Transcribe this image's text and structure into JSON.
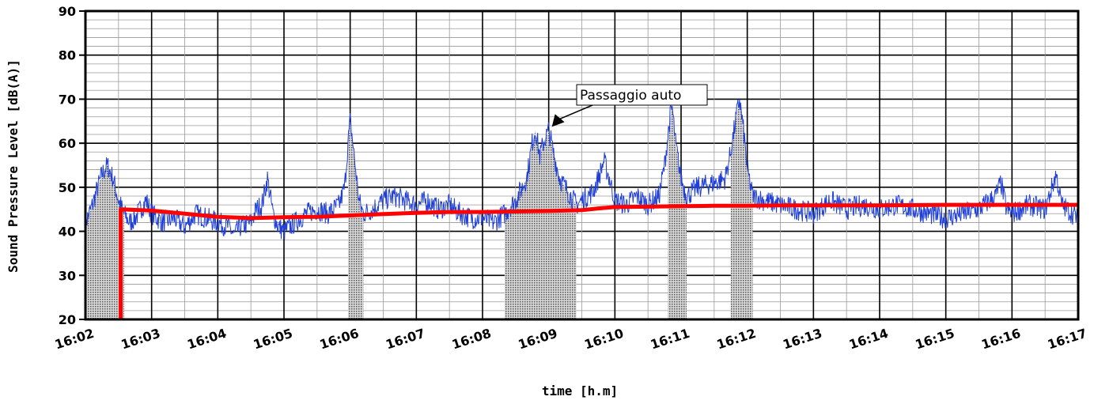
{
  "chart_data": {
    "type": "line",
    "title": "",
    "xlabel": "time [h.m]",
    "ylabel": "Sound Pressure Level [dB(A)]",
    "x_tick_labels": [
      "16:02",
      "16:03",
      "16:04",
      "16:05",
      "16:06",
      "16:07",
      "16:08",
      "16:09",
      "16:10",
      "16:11",
      "16:12",
      "16:13",
      "16:14",
      "16:15",
      "16:16",
      "16:17"
    ],
    "y_tick_labels": [
      "20",
      "30",
      "40",
      "50",
      "60",
      "70",
      "80",
      "90"
    ],
    "xlim": [
      "16:02",
      "16:17"
    ],
    "ylim": [
      20,
      90
    ],
    "grid": true,
    "colors": {
      "instant_level": "#1f3fd8",
      "running_average": "#ff0000",
      "event_shading": "#555555"
    },
    "series": [
      {
        "name": "",
        "values_time_dbA": [
          [
            "16:02:00",
            42
          ],
          [
            "16:02:05",
            45
          ],
          [
            "16:02:10",
            49
          ],
          [
            "16:02:15",
            53
          ],
          [
            "16:02:20",
            55
          ],
          [
            "16:02:25",
            52
          ],
          [
            "16:02:30",
            47
          ],
          [
            "16:02:35",
            44
          ],
          [
            "16:02:40",
            42
          ],
          [
            "16:02:45",
            43
          ],
          [
            "16:02:50",
            45
          ],
          [
            "16:02:55",
            47
          ],
          [
            "16:03:00",
            44
          ],
          [
            "16:03:10",
            42
          ],
          [
            "16:03:20",
            43
          ],
          [
            "16:03:30",
            41
          ],
          [
            "16:03:40",
            44
          ],
          [
            "16:03:50",
            43
          ],
          [
            "16:04:00",
            42
          ],
          [
            "16:04:10",
            41
          ],
          [
            "16:04:15",
            39
          ],
          [
            "16:04:20",
            41
          ],
          [
            "16:04:30",
            42
          ],
          [
            "16:04:35",
            45
          ],
          [
            "16:04:40",
            46
          ],
          [
            "16:04:45",
            52
          ],
          [
            "16:04:50",
            44
          ],
          [
            "16:04:55",
            41
          ],
          [
            "16:05:00",
            40
          ],
          [
            "16:05:10",
            42
          ],
          [
            "16:05:20",
            44
          ],
          [
            "16:05:30",
            45
          ],
          [
            "16:05:40",
            44
          ],
          [
            "16:05:50",
            46
          ],
          [
            "16:05:55",
            50
          ],
          [
            "16:05:58",
            60
          ],
          [
            "16:06:00",
            65
          ],
          [
            "16:06:02",
            61
          ],
          [
            "16:06:05",
            54
          ],
          [
            "16:06:08",
            47
          ],
          [
            "16:06:12",
            44
          ],
          [
            "16:06:20",
            45
          ],
          [
            "16:06:30",
            47
          ],
          [
            "16:06:40",
            48
          ],
          [
            "16:06:50",
            47
          ],
          [
            "16:07:00",
            46
          ],
          [
            "16:07:10",
            47
          ],
          [
            "16:07:20",
            45
          ],
          [
            "16:07:30",
            46
          ],
          [
            "16:07:40",
            44
          ],
          [
            "16:07:50",
            43
          ],
          [
            "16:08:00",
            43
          ],
          [
            "16:08:10",
            42
          ],
          [
            "16:08:20",
            44
          ],
          [
            "16:08:30",
            47
          ],
          [
            "16:08:40",
            52
          ],
          [
            "16:08:45",
            60
          ],
          [
            "16:08:48",
            63
          ],
          [
            "16:08:52",
            57
          ],
          [
            "16:08:55",
            60
          ],
          [
            "16:09:00",
            63
          ],
          [
            "16:09:05",
            57
          ],
          [
            "16:09:10",
            52
          ],
          [
            "16:09:15",
            50
          ],
          [
            "16:09:20",
            48
          ],
          [
            "16:09:25",
            46
          ],
          [
            "16:09:30",
            47
          ],
          [
            "16:09:40",
            49
          ],
          [
            "16:09:45",
            52
          ],
          [
            "16:09:50",
            56
          ],
          [
            "16:09:55",
            52
          ],
          [
            "16:10:00",
            47
          ],
          [
            "16:10:10",
            46
          ],
          [
            "16:10:20",
            48
          ],
          [
            "16:10:30",
            46
          ],
          [
            "16:10:40",
            48
          ],
          [
            "16:10:45",
            55
          ],
          [
            "16:10:50",
            66
          ],
          [
            "16:10:52",
            68
          ],
          [
            "16:10:55",
            60
          ],
          [
            "16:11:00",
            52
          ],
          [
            "16:11:05",
            48
          ],
          [
            "16:11:15",
            50
          ],
          [
            "16:11:30",
            51
          ],
          [
            "16:11:40",
            52
          ],
          [
            "16:11:45",
            58
          ],
          [
            "16:11:50",
            66
          ],
          [
            "16:11:53",
            70
          ],
          [
            "16:11:57",
            62
          ],
          [
            "16:12:00",
            54
          ],
          [
            "16:12:05",
            48
          ],
          [
            "16:12:15",
            47
          ],
          [
            "16:12:30",
            46
          ],
          [
            "16:12:45",
            45
          ],
          [
            "16:13:00",
            44
          ],
          [
            "16:13:15",
            47
          ],
          [
            "16:13:30",
            45
          ],
          [
            "16:13:45",
            46
          ],
          [
            "16:14:00",
            45
          ],
          [
            "16:14:15",
            46
          ],
          [
            "16:14:30",
            45
          ],
          [
            "16:14:45",
            44
          ],
          [
            "16:15:00",
            43
          ],
          [
            "16:15:15",
            44
          ],
          [
            "16:15:30",
            45
          ],
          [
            "16:15:45",
            48
          ],
          [
            "16:15:50",
            51
          ],
          [
            "16:15:55",
            45
          ],
          [
            "16:16:00",
            44
          ],
          [
            "16:16:15",
            46
          ],
          [
            "16:16:30",
            45
          ],
          [
            "16:16:40",
            53
          ],
          [
            "16:16:45",
            46
          ],
          [
            "16:16:55",
            44
          ],
          [
            "16:17:00",
            43
          ]
        ]
      },
      {
        "name": "",
        "values_time_dbA": [
          [
            "16:02:32",
            20
          ],
          [
            "16:02:32",
            45
          ],
          [
            "16:03:00",
            44.7
          ],
          [
            "16:03:30",
            44
          ],
          [
            "16:04:00",
            43.3
          ],
          [
            "16:04:30",
            43
          ],
          [
            "16:05:00",
            43.2
          ],
          [
            "16:05:30",
            43.3
          ],
          [
            "16:06:00",
            43.6
          ],
          [
            "16:06:30",
            43.9
          ],
          [
            "16:07:00",
            44.2
          ],
          [
            "16:07:30",
            44.4
          ],
          [
            "16:08:00",
            44.4
          ],
          [
            "16:08:30",
            44.5
          ],
          [
            "16:09:00",
            44.6
          ],
          [
            "16:09:30",
            44.8
          ],
          [
            "16:09:45",
            45.2
          ],
          [
            "16:10:00",
            45.5
          ],
          [
            "16:10:30",
            45.6
          ],
          [
            "16:11:00",
            45.7
          ],
          [
            "16:11:30",
            45.8
          ],
          [
            "16:12:00",
            45.8
          ],
          [
            "16:12:30",
            45.9
          ],
          [
            "16:13:00",
            45.9
          ],
          [
            "16:14:00",
            45.9
          ],
          [
            "16:15:00",
            46
          ],
          [
            "16:16:00",
            46
          ],
          [
            "16:17:00",
            46
          ]
        ]
      }
    ],
    "shaded_intervals": [
      [
        "16:02:00",
        "16:02:35"
      ],
      [
        "16:05:58",
        "16:06:12"
      ],
      [
        "16:08:20",
        "16:09:25"
      ],
      [
        "16:10:48",
        "16:11:05"
      ],
      [
        "16:11:45",
        "16:12:05"
      ]
    ],
    "annotations": [
      {
        "text": "Passaggio auto",
        "points_to": [
          "16:09:00",
          63
        ]
      }
    ]
  }
}
